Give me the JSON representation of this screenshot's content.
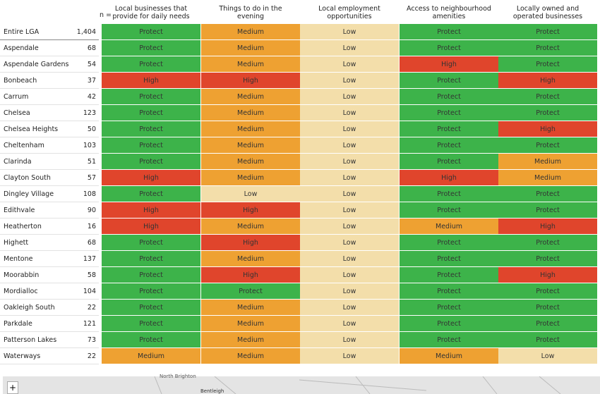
{
  "table": {
    "header": {
      "n": "n =",
      "columns": [
        "Local businesses that provide for daily needs",
        "Things to do in the evening",
        "Local employment opportunities",
        "Access to neighbourhood amenities",
        "Locally owned and operated businesses"
      ]
    },
    "colors": {
      "Protect": "#3db34a",
      "Medium": "#eea132",
      "Low": "#f3deaa",
      "High": "#e0452c"
    },
    "rows": [
      [
        "Entire LGA",
        "1,404",
        "Protect",
        "Medium",
        "Low",
        "Protect",
        "Protect"
      ],
      [
        "Aspendale",
        "68",
        "Protect",
        "Medium",
        "Low",
        "Protect",
        "Protect"
      ],
      [
        "Aspendale Gardens",
        "54",
        "Protect",
        "Medium",
        "Low",
        "High",
        "Protect"
      ],
      [
        "Bonbeach",
        "37",
        "High",
        "High",
        "Low",
        "Protect",
        "High"
      ],
      [
        "Carrum",
        "42",
        "Protect",
        "Medium",
        "Low",
        "Protect",
        "Protect"
      ],
      [
        "Chelsea",
        "123",
        "Protect",
        "Medium",
        "Low",
        "Protect",
        "Protect"
      ],
      [
        "Chelsea Heights",
        "50",
        "Protect",
        "Medium",
        "Low",
        "Protect",
        "High"
      ],
      [
        "Cheltenham",
        "103",
        "Protect",
        "Medium",
        "Low",
        "Protect",
        "Protect"
      ],
      [
        "Clarinda",
        "51",
        "Protect",
        "Medium",
        "Low",
        "Protect",
        "Medium"
      ],
      [
        "Clayton South",
        "57",
        "High",
        "Medium",
        "Low",
        "High",
        "Medium"
      ],
      [
        "Dingley Village",
        "108",
        "Protect",
        "Low",
        "Low",
        "Protect",
        "Protect"
      ],
      [
        "Edithvale",
        "90",
        "High",
        "High",
        "Low",
        "Protect",
        "Protect"
      ],
      [
        "Heatherton",
        "16",
        "High",
        "Medium",
        "Low",
        "Medium",
        "High"
      ],
      [
        "Highett",
        "68",
        "Protect",
        "High",
        "Low",
        "Protect",
        "Protect"
      ],
      [
        "Mentone",
        "137",
        "Protect",
        "Medium",
        "Low",
        "Protect",
        "Protect"
      ],
      [
        "Moorabbin",
        "58",
        "Protect",
        "High",
        "Low",
        "Protect",
        "High"
      ],
      [
        "Mordialloc",
        "104",
        "Protect",
        "Protect",
        "Low",
        "Protect",
        "Protect"
      ],
      [
        "Oakleigh South",
        "22",
        "Protect",
        "Medium",
        "Low",
        "Protect",
        "Protect"
      ],
      [
        "Parkdale",
        "121",
        "Protect",
        "Medium",
        "Low",
        "Protect",
        "Protect"
      ],
      [
        "Patterson Lakes",
        "73",
        "Protect",
        "Medium",
        "Low",
        "Protect",
        "Protect"
      ],
      [
        "Waterways",
        "22",
        "Medium",
        "Medium",
        "Low",
        "Medium",
        "Low"
      ]
    ]
  },
  "map": {
    "zoom_in": "+",
    "labels": [
      "North Brighton",
      "Bentleigh"
    ]
  }
}
